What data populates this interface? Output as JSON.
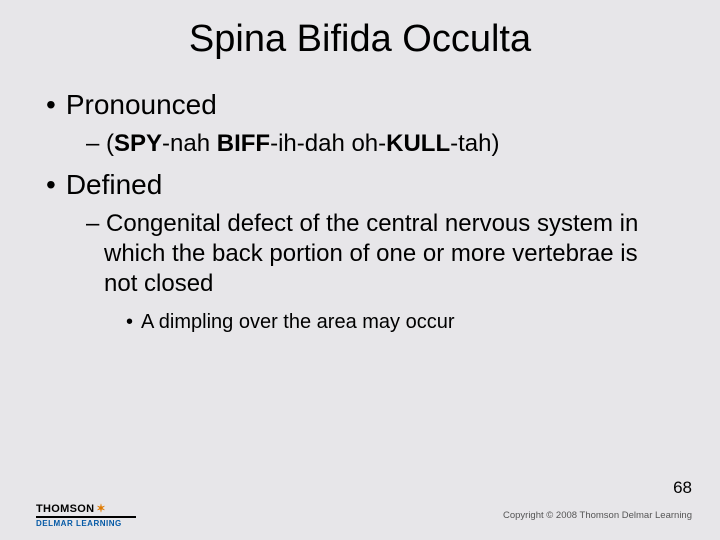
{
  "background_color": "#e7e6e9",
  "text_color": "#000000",
  "title": {
    "text": "Spina Bifida Occulta",
    "fontsize": 38
  },
  "bullets": {
    "l1_fontsize": 28,
    "l2_fontsize": 24,
    "l3_fontsize": 20,
    "l1_1": "Pronounced",
    "l2_1_prefix": "– (",
    "l2_1_b1": "SPY",
    "l2_1_m1": "-nah  ",
    "l2_1_b2": "BIFF",
    "l2_1_m2": "-ih-dah  oh-",
    "l2_1_b3": "KULL",
    "l2_1_m3": "-tah)",
    "l1_2": "Defined",
    "l2_2": "– Congenital defect of the central nervous system in which the back portion of one or more vertebrae is not closed",
    "l3_1": "A dimpling over the area may occur"
  },
  "footer": {
    "logo_top": "THOMSON",
    "logo_bottom": "DELMAR LEARNING",
    "logo_brand_color": "#065aa6",
    "logo_star_color": "#e07a00",
    "page_number": "68",
    "copyright": "Copyright © 2008 Thomson Delmar Learning"
  }
}
